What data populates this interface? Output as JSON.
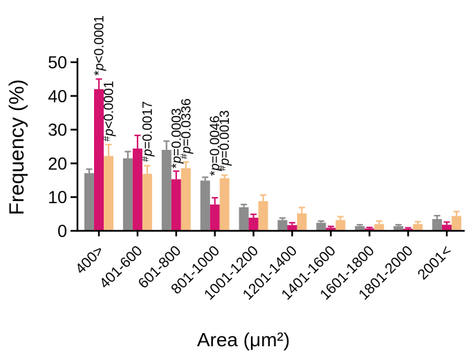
{
  "figure": {
    "background_color": "#ffffff",
    "axis_color": "#000000"
  },
  "chart_data": {
    "type": "bar",
    "title": "",
    "xlabel": "Area (μm²)",
    "ylabel": "Frequency (%)",
    "ylim": [
      0,
      50
    ],
    "yticks": [
      0,
      10,
      20,
      30,
      40,
      50
    ],
    "grid": false,
    "legend": "none",
    "error_bars": "upper only, color-matched to bar, capped",
    "categories": [
      "400>",
      "401-600",
      "601-800",
      "801-1000",
      "1001-1200",
      "1201-1400",
      "1401-1600",
      "1601-1800",
      "1801-2000",
      "2001<"
    ],
    "series": [
      {
        "name": "gray",
        "color": "#8C8C8C",
        "values": [
          17.1,
          21.5,
          24.0,
          14.9,
          7.0,
          3.2,
          2.4,
          1.4,
          1.4,
          3.5
        ],
        "errors": [
          1.2,
          2.0,
          2.6,
          1.0,
          0.8,
          0.6,
          0.5,
          0.4,
          0.4,
          1.0
        ]
      },
      {
        "name": "magenta",
        "color": "#D4136E",
        "values": [
          42.0,
          24.4,
          15.3,
          7.8,
          3.9,
          1.7,
          0.9,
          0.7,
          0.6,
          1.8
        ],
        "errors": [
          3.0,
          3.9,
          2.4,
          2.0,
          1.0,
          0.7,
          0.4,
          0.3,
          0.3,
          0.8
        ]
      },
      {
        "name": "orange",
        "color": "#F6BE82",
        "values": [
          22.2,
          16.9,
          18.6,
          15.6,
          8.8,
          5.2,
          3.2,
          2.0,
          2.0,
          4.4
        ],
        "errors": [
          3.4,
          2.4,
          1.8,
          0.9,
          1.8,
          1.7,
          1.0,
          0.9,
          0.7,
          1.3
        ]
      }
    ],
    "annotations": [
      {
        "text": "*p<0.0001",
        "group": 0,
        "series": 1,
        "y_value": 46.0
      },
      {
        "text": "#p<0.0001",
        "group": 0,
        "series": 2,
        "y_value": 26.5
      },
      {
        "text": "#p=0.0017",
        "group": 1,
        "series": 2,
        "y_value": 20.5
      },
      {
        "text": "*p=0.0003",
        "group": 2,
        "series": 1,
        "y_value": 18.5
      },
      {
        "text": "#p=0.0336",
        "group": 2,
        "series": 2,
        "y_value": 21.3
      },
      {
        "text": "*p=0.0046",
        "group": 3,
        "series": 1,
        "y_value": 16.3
      },
      {
        "text": "#p=0.0013",
        "group": 3,
        "series": 2,
        "y_value": 17.8
      }
    ]
  }
}
